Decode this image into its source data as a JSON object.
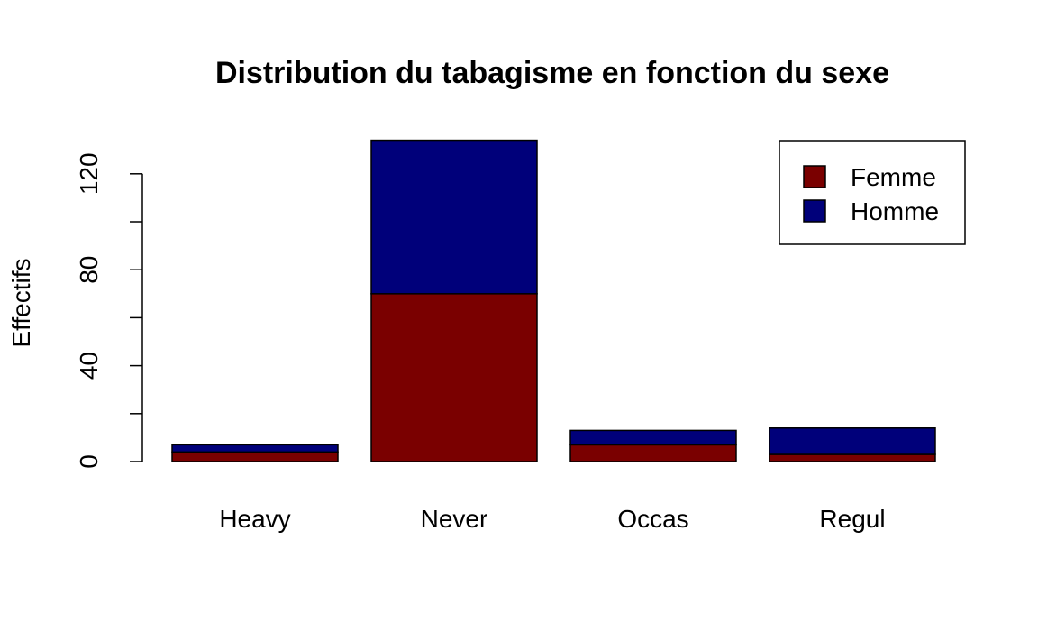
{
  "chart_data": {
    "type": "bar",
    "stacked": true,
    "title": "Distribution du tabagisme en fonction du sexe",
    "xlabel": "",
    "ylabel": "Effectifs",
    "categories": [
      "Heavy",
      "Never",
      "Occas",
      "Regul"
    ],
    "series": [
      {
        "name": "Femme",
        "color": "#7a0000",
        "values": [
          4,
          70,
          7,
          3
        ]
      },
      {
        "name": "Homme",
        "color": "#00007a",
        "values": [
          3,
          64,
          6,
          11
        ]
      }
    ],
    "yticks": [
      0,
      40,
      80,
      120
    ],
    "yticks_labeled": [
      "0",
      "40",
      "80",
      "120"
    ],
    "ylim": [
      0,
      134
    ],
    "grid": false,
    "legend_position": "top-right"
  }
}
